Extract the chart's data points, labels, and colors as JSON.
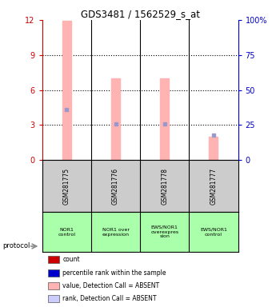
{
  "title": "GDS3481 / 1562529_s_at",
  "samples": [
    "GSM281775",
    "GSM281776",
    "GSM281778",
    "GSM281777"
  ],
  "protocols": [
    "NOR1\ncontrol",
    "NOR1 over\nexpression",
    "EWS/NOR1\noverexpres\nsion",
    "EWS/NOR1\ncontrol"
  ],
  "bar_values": [
    11.9,
    7.0,
    7.0,
    2.0
  ],
  "marker_values": [
    4.3,
    3.1,
    3.1,
    2.1
  ],
  "bar_color": "#FFB3B3",
  "marker_color": "#9999CC",
  "ylim_left": [
    0,
    12
  ],
  "ylim_right": [
    0,
    100
  ],
  "yticks_left": [
    0,
    3,
    6,
    9,
    12
  ],
  "yticks_right": [
    0,
    25,
    50,
    75,
    100
  ],
  "left_tick_color": "#CC0000",
  "right_tick_color": "#0000CC",
  "bar_width": 0.18,
  "protocol_bg": "#AAFFAA",
  "sample_bg": "#CCCCCC",
  "legend_colors": [
    "#CC0000",
    "#0000CC",
    "#FFB3B3",
    "#CCCCFF"
  ],
  "legend_labels": [
    "count",
    "percentile rank within the sample",
    "value, Detection Call = ABSENT",
    "rank, Detection Call = ABSENT"
  ]
}
